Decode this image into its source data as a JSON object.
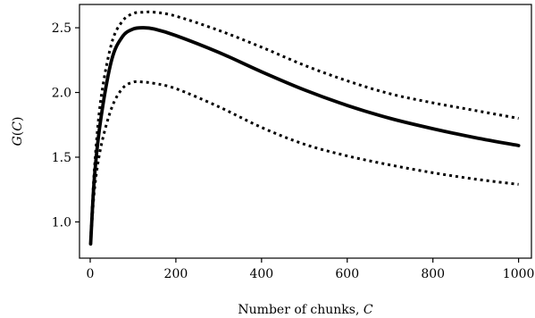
{
  "chart_data": {
    "type": "line",
    "xlabel": "Number of chunks, C",
    "ylabel": "G(C)",
    "xlim": [
      -25,
      1030
    ],
    "ylim": [
      0.72,
      2.68
    ],
    "x_ticks": [
      0,
      200,
      400,
      600,
      800,
      1000
    ],
    "x_tick_labels": [
      "0",
      "200",
      "400",
      "600",
      "800",
      "1000"
    ],
    "y_ticks": [
      1.0,
      1.5,
      2.0,
      2.5
    ],
    "y_tick_labels": [
      "1.0",
      "1.5",
      "2.0",
      "2.5"
    ],
    "grid": false,
    "colors": {
      "line": "#000000",
      "axes": "#000000",
      "background": "#ffffff"
    },
    "series": [
      {
        "style": "solid",
        "x": [
          1,
          10,
          25,
          50,
          75,
          100,
          125,
          150,
          200,
          300,
          400,
          500,
          600,
          700,
          800,
          900,
          1000
        ],
        "y": [
          0.83,
          1.35,
          1.8,
          2.25,
          2.43,
          2.49,
          2.5,
          2.49,
          2.44,
          2.31,
          2.16,
          2.02,
          1.9,
          1.8,
          1.72,
          1.65,
          1.59
        ]
      },
      {
        "style": "dotted",
        "x": [
          1,
          10,
          25,
          50,
          75,
          100,
          125,
          150,
          200,
          300,
          400,
          500,
          600,
          700,
          800,
          900,
          1000
        ],
        "y": [
          0.86,
          1.42,
          1.95,
          2.38,
          2.55,
          2.61,
          2.62,
          2.62,
          2.59,
          2.48,
          2.35,
          2.21,
          2.09,
          1.99,
          1.92,
          1.86,
          1.8
        ]
      },
      {
        "style": "dotted",
        "x": [
          1,
          10,
          25,
          50,
          75,
          100,
          125,
          150,
          200,
          300,
          400,
          500,
          600,
          700,
          800,
          900,
          1000
        ],
        "y": [
          0.82,
          1.25,
          1.58,
          1.88,
          2.03,
          2.08,
          2.08,
          2.07,
          2.03,
          1.89,
          1.73,
          1.6,
          1.51,
          1.44,
          1.38,
          1.33,
          1.29
        ]
      }
    ]
  }
}
